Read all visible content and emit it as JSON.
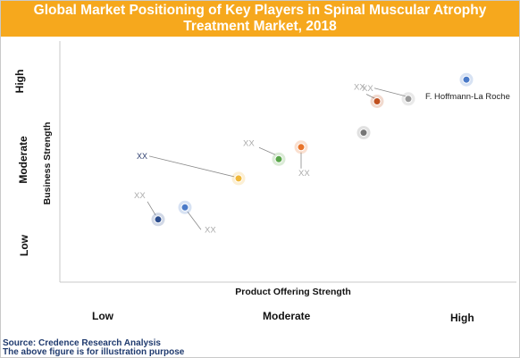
{
  "title_line1": "Global Market Positioning of Key Players in Spinal Muscular Atrophy",
  "title_line2": "Treatment Market, 2018",
  "source": "Source: Credence Research Analysis",
  "note": "The above figure is for illustration purpose",
  "colors": {
    "title_bg": "#f6a81d",
    "title_text": "#ffffff",
    "footer_text": "#1f3a6e"
  },
  "chart_data": {
    "type": "scatter",
    "xlabel": "Product Offering Strength",
    "ylabel": "Business Strength",
    "x_levels": [
      "Low",
      "Moderate",
      "High"
    ],
    "y_levels": [
      "Low",
      "Moderate",
      "High"
    ],
    "xlim": [
      0,
      10
    ],
    "ylim": [
      0,
      10
    ],
    "grid": false,
    "points": [
      {
        "label": "F. Hoffmann-La Roche",
        "x": 9.1,
        "y": 8.4,
        "color": "#4a7ac8"
      },
      {
        "label": "",
        "x": 7.8,
        "y": 7.6,
        "color": "#999999"
      },
      {
        "label": "XX",
        "x": 7.1,
        "y": 7.5,
        "color": "#c0501f"
      },
      {
        "label": "",
        "x": 6.8,
        "y": 6.2,
        "color": "#777777"
      },
      {
        "label": "XX",
        "x": 5.4,
        "y": 5.6,
        "color": "#e8742a"
      },
      {
        "label": "XX",
        "x": 4.9,
        "y": 5.1,
        "color": "#5aa64a"
      },
      {
        "label": "XX",
        "x": 4.0,
        "y": 4.3,
        "color": "#f0b83a"
      },
      {
        "label": "XX",
        "x": 2.8,
        "y": 3.1,
        "color": "#4a7ac8"
      },
      {
        "label": "XX",
        "x": 2.2,
        "y": 2.6,
        "color": "#2d4e8e"
      }
    ]
  }
}
